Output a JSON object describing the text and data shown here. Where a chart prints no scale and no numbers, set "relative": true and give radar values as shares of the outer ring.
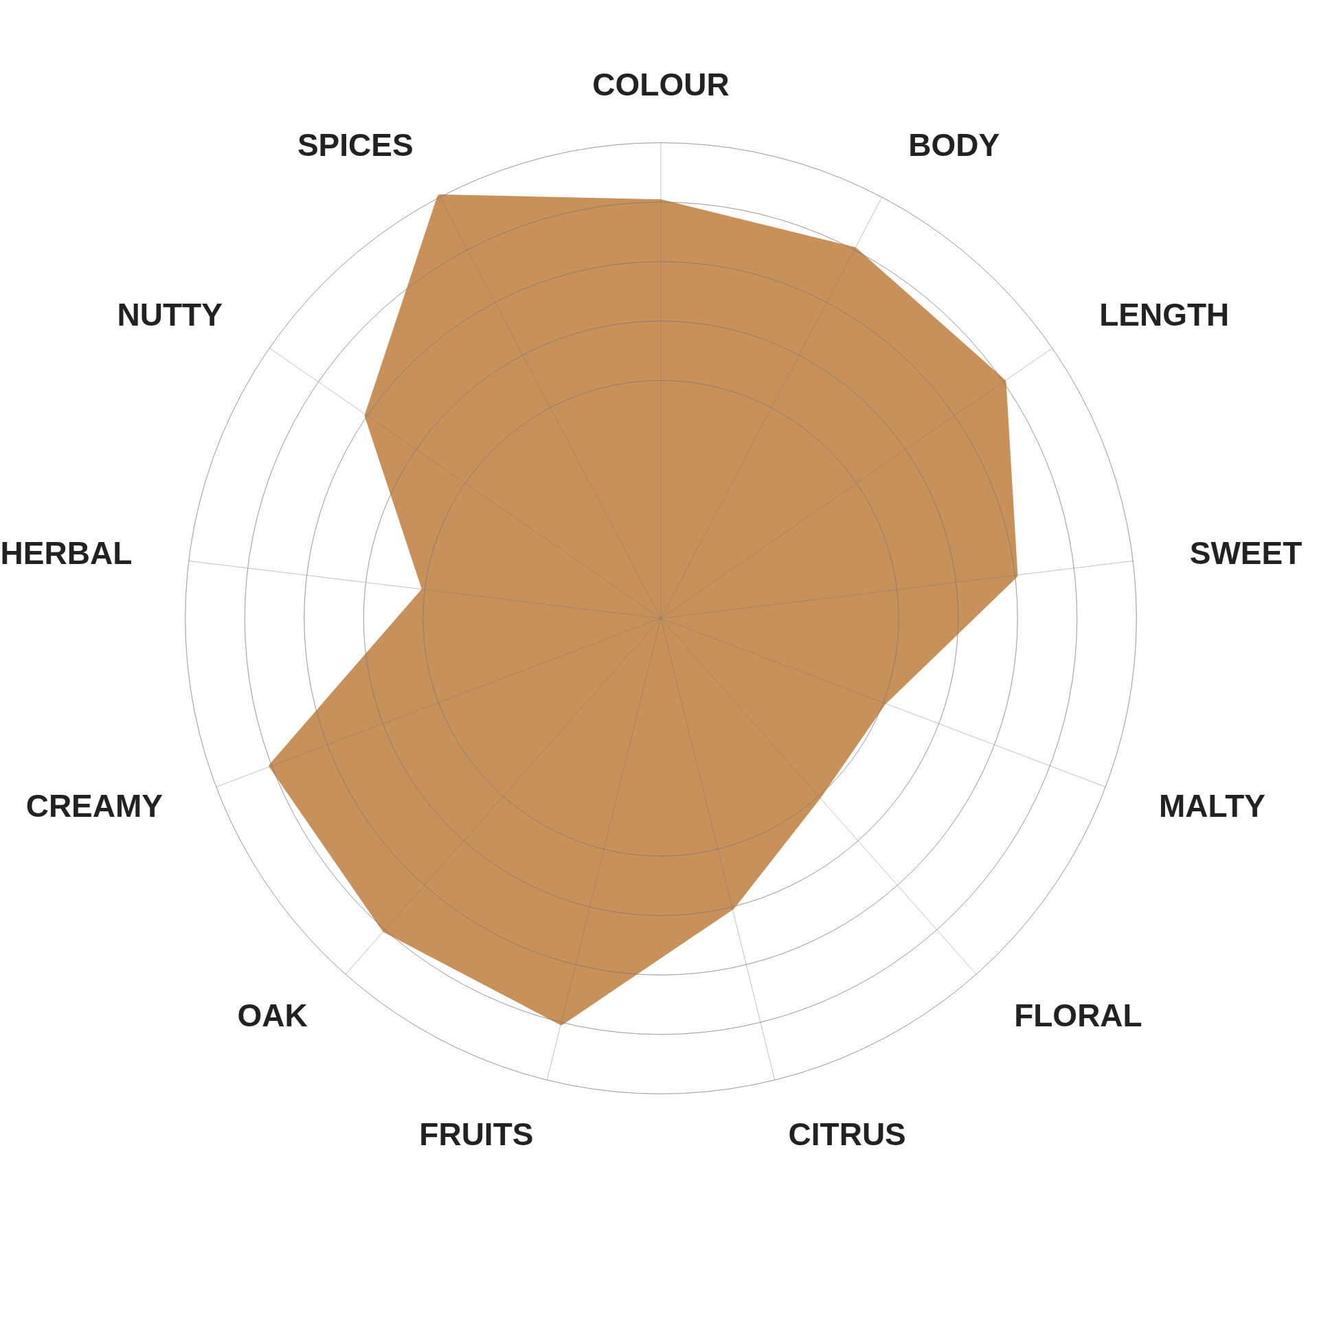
{
  "chart_data": {
    "type": "radar",
    "relative": true,
    "grid": true,
    "categories": [
      "COLOUR",
      "BODY",
      "LENGTH",
      "SWEET",
      "MALTY",
      "FLORAL",
      "CITRUS",
      "FRUITS",
      "OAK",
      "CREAMY",
      "HERBAL",
      "NUTTY",
      "SPICES"
    ],
    "series": [
      {
        "color": "#c9915a",
        "values": [
          0.875,
          0.875,
          0.875,
          0.75,
          0.5,
          0.5,
          0.625,
          0.875,
          0.875,
          0.875,
          0.5,
          0.75,
          1.0
        ]
      }
    ]
  }
}
